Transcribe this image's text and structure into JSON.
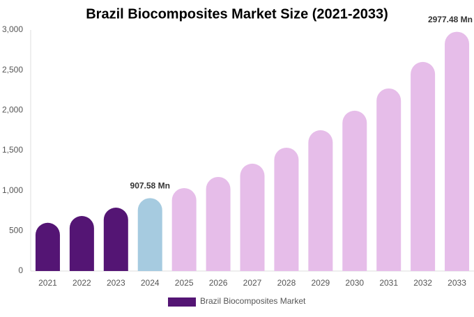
{
  "chart_data": {
    "type": "bar",
    "title": "Brazil Biocomposites Market Size (2021-2033)",
    "categories": [
      "2021",
      "2022",
      "2023",
      "2024",
      "2025",
      "2026",
      "2027",
      "2028",
      "2029",
      "2030",
      "2031",
      "2032",
      "2033"
    ],
    "series": [
      {
        "name": "Brazil Biocomposites Market",
        "color": "#541574",
        "colors": [
          "#541574",
          "#541574",
          "#541574",
          "#a6cbe0",
          "#e6bde9",
          "#e6bde9",
          "#e6bde9",
          "#e6bde9",
          "#e6bde9",
          "#e6bde9",
          "#e6bde9",
          "#e6bde9",
          "#e6bde9"
        ],
        "values": [
          600,
          685,
          789,
          907.58,
          1032,
          1171,
          1336,
          1535,
          1752,
          1995,
          2272,
          2602,
          2977.48
        ],
        "value_labels": [
          null,
          null,
          null,
          "907.58 Mn",
          null,
          null,
          null,
          null,
          null,
          null,
          null,
          null,
          "2977.48 Mn"
        ]
      }
    ],
    "ylim": [
      0,
      3000
    ],
    "yticks": [
      0,
      500,
      {
        "value": 1000,
        "label": "1,000"
      },
      {
        "value": 1500,
        "label": "1,500"
      },
      {
        "value": 2000,
        "label": "2,000"
      },
      {
        "value": 2500,
        "label": "2,500"
      },
      {
        "value": 3000,
        "label": "3,000"
      }
    ],
    "grid": false,
    "legend": "bottom"
  }
}
